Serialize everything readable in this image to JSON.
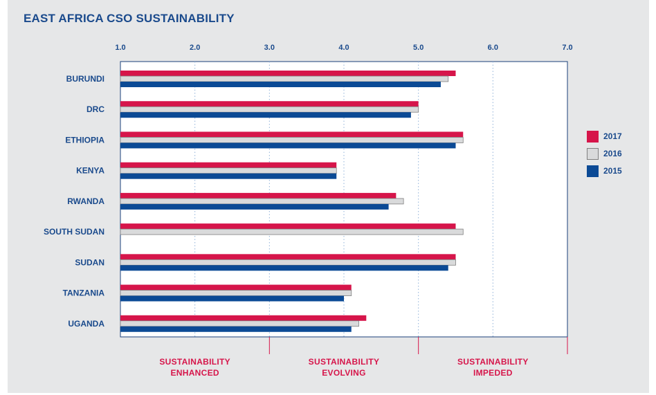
{
  "chart_data": {
    "type": "bar",
    "orientation": "horizontal",
    "title": "EAST AFRICA CSO SUSTAINABILITY",
    "categories": [
      "BURUNDI",
      "DRC",
      "ETHIOPIA",
      "KENYA",
      "RWANDA",
      "SOUTH SUDAN",
      "SUDAN",
      "TANZANIA",
      "UGANDA"
    ],
    "series": [
      {
        "name": "2017",
        "color": "#d6154a",
        "values": [
          5.5,
          5.0,
          5.6,
          3.9,
          4.7,
          5.5,
          5.5,
          4.1,
          4.3
        ]
      },
      {
        "name": "2016",
        "color": "#d9dadb",
        "values": [
          5.4,
          5.0,
          5.6,
          3.9,
          4.8,
          5.6,
          5.5,
          4.1,
          4.2
        ]
      },
      {
        "name": "2015",
        "color": "#0b4a95",
        "values": [
          5.3,
          4.9,
          5.5,
          3.9,
          4.6,
          null,
          5.4,
          4.0,
          4.1
        ]
      }
    ],
    "xlim": [
      1.0,
      7.0
    ],
    "xticks": [
      "1.0",
      "2.0",
      "3.0",
      "4.0",
      "5.0",
      "6.0",
      "7.0"
    ],
    "grid": true,
    "legend_position": "right",
    "zones": [
      {
        "label": "SUSTAINABILITY ENHANCED",
        "lines": [
          "SUSTAINABILITY",
          "ENHANCED"
        ],
        "from": 1.0,
        "to": 3.0
      },
      {
        "label": "SUSTAINABILITY EVOLVING",
        "lines": [
          "SUSTAINABILITY",
          "EVOLVING"
        ],
        "from": 3.0,
        "to": 5.0
      },
      {
        "label": "SUSTAINABILITY IMPEDED",
        "lines": [
          "SUSTAINABILITY",
          "IMPEDED"
        ],
        "from": 5.0,
        "to": 7.0
      }
    ],
    "zone_boundaries": [
      3.0,
      5.0,
      7.0
    ]
  },
  "colors": {
    "title": "#1a4a8c",
    "axis_text": "#1a4a8c",
    "zone_text": "#d6154a",
    "background": "#e6e7e8",
    "plot_background": "#ffffff"
  }
}
